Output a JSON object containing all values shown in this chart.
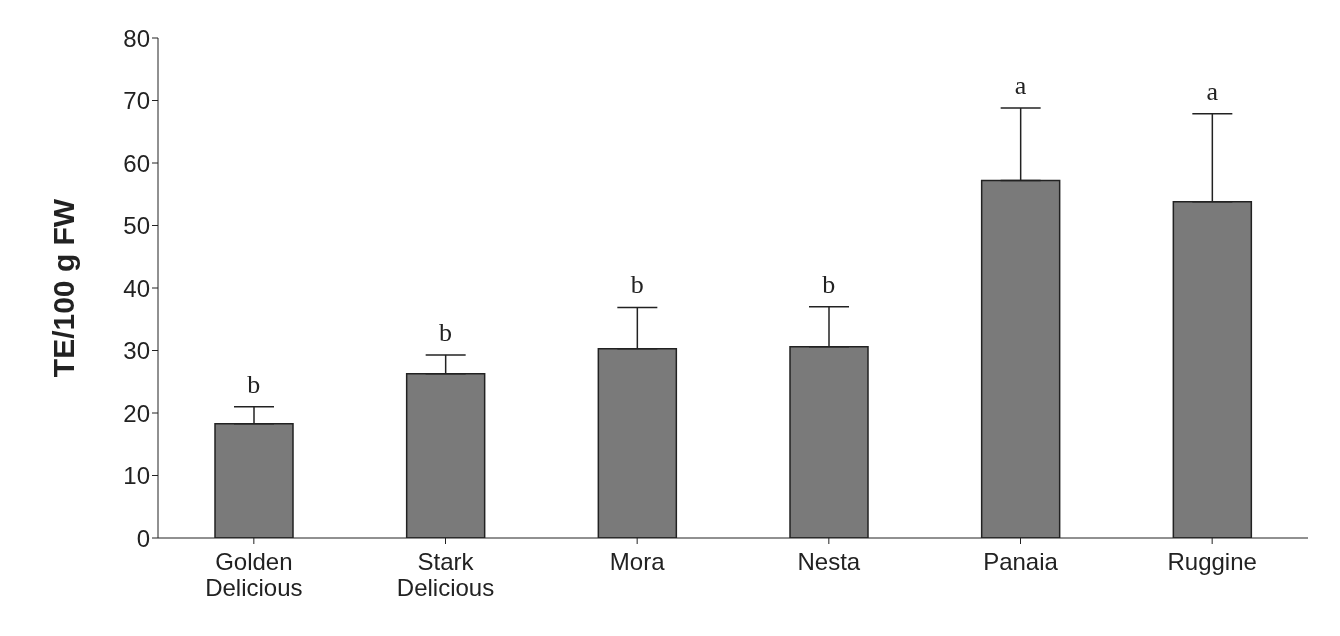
{
  "chart_data": {
    "type": "bar",
    "ylabel": "TE/100 g FW",
    "categories": [
      "Golden Delicious",
      "Stark Delicious",
      "Mora",
      "Nesta",
      "Panaia",
      "Ruggine"
    ],
    "values": [
      18.3,
      26.3,
      30.3,
      30.6,
      57.2,
      53.8
    ],
    "errors": [
      [
        18.3,
        21.0
      ],
      [
        26.3,
        29.3
      ],
      [
        30.3,
        36.9
      ],
      [
        30.6,
        37.0
      ],
      [
        57.2,
        68.8
      ],
      [
        53.8,
        67.9
      ]
    ],
    "color": "#7a7a7a",
    "ylim": [
      0,
      80
    ],
    "yticks": [
      0,
      10,
      20,
      30,
      40,
      50,
      60,
      70,
      80
    ],
    "grid": false,
    "annotations": [
      "b",
      "b",
      "b",
      "b",
      "a",
      "a"
    ]
  }
}
